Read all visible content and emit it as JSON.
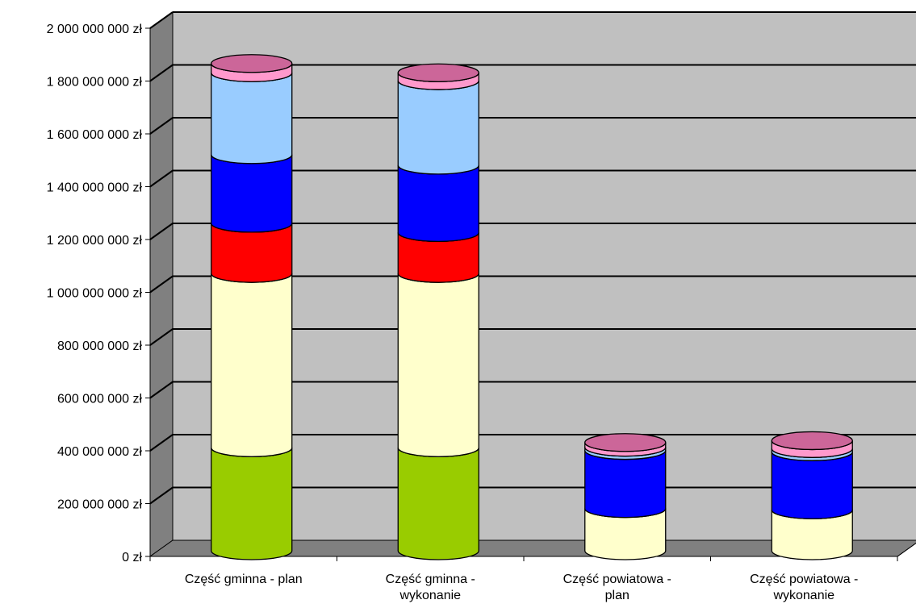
{
  "chart_data": {
    "type": "bar",
    "style": "3d-stacked-cylinder",
    "categories": [
      [
        "Część gminna - plan"
      ],
      [
        "Część gminna -",
        "wykonanie"
      ],
      [
        "Część powiatowa -",
        "plan"
      ],
      [
        "Część powiatowa -",
        "wykonanie"
      ]
    ],
    "y_ticks": [
      "0 zł",
      "200 000 000 zł",
      "400 000 000 zł",
      "600 000 000 zł",
      "800 000 000 zł",
      "1 000 000 000 zł",
      "1 200 000 000 zł",
      "1 400 000 000 zł",
      "1 600 000 000 zł",
      "1 800 000 000 zł",
      "2 000 000 000 zł"
    ],
    "ylim": [
      0,
      2000000000
    ],
    "grid": true,
    "legend": "none",
    "series": [
      {
        "color": "#99cc00",
        "values": [
          390000000,
          390000000,
          0,
          0
        ]
      },
      {
        "color": "#ffffcc",
        "values": [
          660000000,
          660000000,
          160000000,
          155000000
        ]
      },
      {
        "color": "#ff0000",
        "values": [
          190000000,
          155000000,
          0,
          0
        ]
      },
      {
        "color": "#0000ff",
        "values": [
          260000000,
          255000000,
          220000000,
          220000000
        ]
      },
      {
        "color": "#99ccff",
        "values": [
          310000000,
          320000000,
          12000000,
          12000000
        ]
      },
      {
        "color": "#ff99cc",
        "values": [
          35000000,
          30000000,
          18000000,
          30000000
        ]
      }
    ],
    "colors": {
      "wall": "#c0c0c0",
      "side_wall": "#808080",
      "floor": "#808080",
      "gridline": "#000000",
      "cap": "#cc6699"
    }
  }
}
